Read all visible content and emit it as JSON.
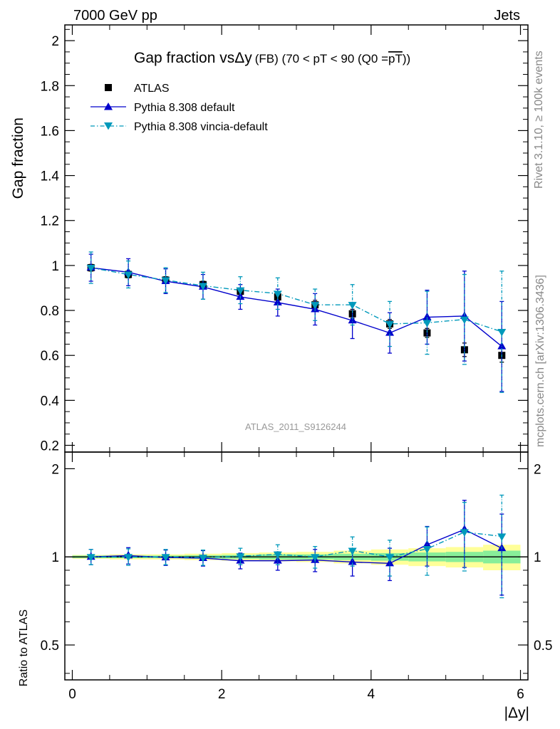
{
  "header": {
    "left": "7000 GeV pp",
    "right": "Jets"
  },
  "side_labels": {
    "rivet": "Rivet 3.1.10, ≥ 100k events",
    "mcplots": "mcplots.cern.ch [arXiv:1306.3436]"
  },
  "watermark": "ATLAS_2011_S9126244",
  "chart_data": {
    "type": "line",
    "title": "Gap fraction vsΔy (FB) (70 < pT <  90 (Q0 =pT))",
    "title_parts": {
      "main": "Gap fraction vs",
      "delta": "Δy",
      "sub": "(FB) (70 < pT <  90 (Q0 =",
      "overline": "pT",
      "close": "))"
    },
    "xlabel": "|Δy|",
    "ylabel": "Gap fraction",
    "ratio_ylabel": "Ratio to ATLAS",
    "xlim": [
      -0.1,
      6.1
    ],
    "ylim": [
      0.17,
      2.07
    ],
    "ratio_ylim": [
      0.38,
      2.28
    ],
    "ratio_scale": "log",
    "main_yticks": [
      "0.2",
      "0.4",
      "0.6",
      "0.8",
      "1",
      "1.2",
      "1.4",
      "1.6",
      "1.8",
      "2"
    ],
    "ratio_yticks": [
      "0.5",
      "1",
      "2"
    ],
    "xticks": [
      "0",
      "2",
      "4",
      "6"
    ],
    "legend_position": "top-left",
    "x": [
      0.25,
      0.75,
      1.25,
      1.75,
      2.25,
      2.75,
      3.25,
      3.75,
      4.25,
      4.75,
      5.25,
      5.75
    ],
    "band_edges": [
      0.0,
      0.5,
      1.0,
      1.5,
      2.0,
      2.5,
      3.0,
      3.5,
      4.0,
      4.5,
      5.0,
      5.5,
      6.0
    ],
    "series": [
      {
        "name": "ATLAS",
        "style": "data",
        "color": "#000000",
        "marker": "square",
        "values": [
          0.99,
          0.96,
          0.935,
          0.915,
          0.885,
          0.86,
          0.825,
          0.785,
          0.74,
          0.7,
          0.625,
          0.6
        ],
        "stat_err": [
          0.015,
          0.015,
          0.015,
          0.015,
          0.015,
          0.015,
          0.02,
          0.02,
          0.02,
          0.02,
          0.03,
          0.03
        ],
        "ratio_band_stat": [
          0.01,
          0.01,
          0.01,
          0.012,
          0.015,
          0.02,
          0.02,
          0.025,
          0.03,
          0.035,
          0.04,
          0.05
        ],
        "ratio_band_total": [
          0.015,
          0.02,
          0.02,
          0.025,
          0.03,
          0.035,
          0.04,
          0.05,
          0.06,
          0.07,
          0.08,
          0.1
        ]
      },
      {
        "name": "Pythia 8.308 default",
        "style": "solid",
        "color": "#0000cc",
        "marker": "triangle-up",
        "values": [
          0.99,
          0.97,
          0.93,
          0.905,
          0.86,
          0.835,
          0.805,
          0.755,
          0.7,
          0.77,
          0.775,
          0.64
        ],
        "errors": [
          0.06,
          0.06,
          0.055,
          0.055,
          0.055,
          0.06,
          0.07,
          0.08,
          0.09,
          0.12,
          0.2,
          0.2
        ],
        "ratio": [
          1.0,
          1.01,
          0.995,
          0.99,
          0.97,
          0.97,
          0.975,
          0.96,
          0.95,
          1.1,
          1.24,
          1.07
        ],
        "ratio_err": [
          0.06,
          0.065,
          0.06,
          0.06,
          0.06,
          0.07,
          0.085,
          0.1,
          0.12,
          0.17,
          0.32,
          0.33
        ]
      },
      {
        "name": "Pythia 8.308 vincia-default",
        "style": "dashdot",
        "color": "#0099bb",
        "marker": "triangle-down",
        "values": [
          0.99,
          0.96,
          0.935,
          0.91,
          0.89,
          0.875,
          0.825,
          0.825,
          0.74,
          0.745,
          0.76,
          0.705
        ],
        "errors": [
          0.07,
          0.06,
          0.055,
          0.06,
          0.06,
          0.07,
          0.07,
          0.09,
          0.1,
          0.14,
          0.2,
          0.27
        ],
        "ratio": [
          1.0,
          1.0,
          1.0,
          0.995,
          1.005,
          1.02,
          1.0,
          1.05,
          1.0,
          1.065,
          1.215,
          1.175
        ],
        "ratio_err": [
          0.06,
          0.065,
          0.06,
          0.06,
          0.065,
          0.08,
          0.085,
          0.12,
          0.14,
          0.2,
          0.32,
          0.45
        ]
      }
    ]
  }
}
